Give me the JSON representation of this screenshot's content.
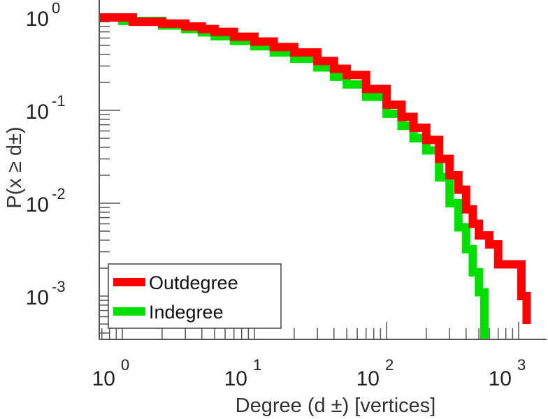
{
  "chart_data": {
    "type": "line",
    "title": "",
    "xlabel": "Degree (d ±) [vertices]",
    "ylabel": "P(x ≥ d±)",
    "xscale": "log",
    "yscale": "log",
    "xlim": [
      0.67,
      2500
    ],
    "ylim": [
      0.00034,
      1.08
    ],
    "x_ticks": [
      {
        "base": "10",
        "exp": "0",
        "value": 1
      },
      {
        "base": "10",
        "exp": "1",
        "value": 10
      },
      {
        "base": "10",
        "exp": "2",
        "value": 100
      },
      {
        "base": "10",
        "exp": "3",
        "value": 1000
      }
    ],
    "y_ticks": [
      {
        "base": "10",
        "exp": "0",
        "value": 1
      },
      {
        "base": "10",
        "exp": "-1",
        "value": 0.1
      },
      {
        "base": "10",
        "exp": "-2",
        "value": 0.01
      },
      {
        "base": "10",
        "exp": "-3",
        "value": 0.001
      }
    ],
    "legend_position": "bottom-left",
    "series": [
      {
        "name": "Outdegree",
        "color": "#ff0000",
        "x": [
          0.67,
          1.2,
          2,
          3,
          4,
          5,
          7,
          10,
          14,
          20,
          30,
          40,
          50,
          70,
          100,
          130,
          160,
          200,
          250,
          300,
          350,
          400,
          450,
          500,
          600,
          700,
          1000,
          1050,
          1150
        ],
        "y": [
          1.0,
          0.9,
          0.86,
          0.8,
          0.75,
          0.7,
          0.62,
          0.55,
          0.48,
          0.42,
          0.34,
          0.28,
          0.24,
          0.17,
          0.115,
          0.085,
          0.065,
          0.048,
          0.03,
          0.02,
          0.014,
          0.0086,
          0.006,
          0.0045,
          0.0036,
          0.0022,
          0.0022,
          0.001,
          0.0005
        ]
      },
      {
        "name": "Indegree",
        "color": "#00e000",
        "x": [
          0.67,
          1,
          2,
          3,
          4,
          5,
          7,
          10,
          14,
          20,
          30,
          40,
          50,
          70,
          100,
          130,
          160,
          200,
          250,
          300,
          350,
          400,
          450,
          500,
          550
        ],
        "y": [
          1.0,
          0.92,
          0.82,
          0.75,
          0.69,
          0.63,
          0.56,
          0.49,
          0.42,
          0.36,
          0.29,
          0.23,
          0.19,
          0.14,
          0.092,
          0.068,
          0.05,
          0.037,
          0.019,
          0.01,
          0.0055,
          0.0032,
          0.0018,
          0.0011,
          0.0003
        ]
      }
    ]
  }
}
